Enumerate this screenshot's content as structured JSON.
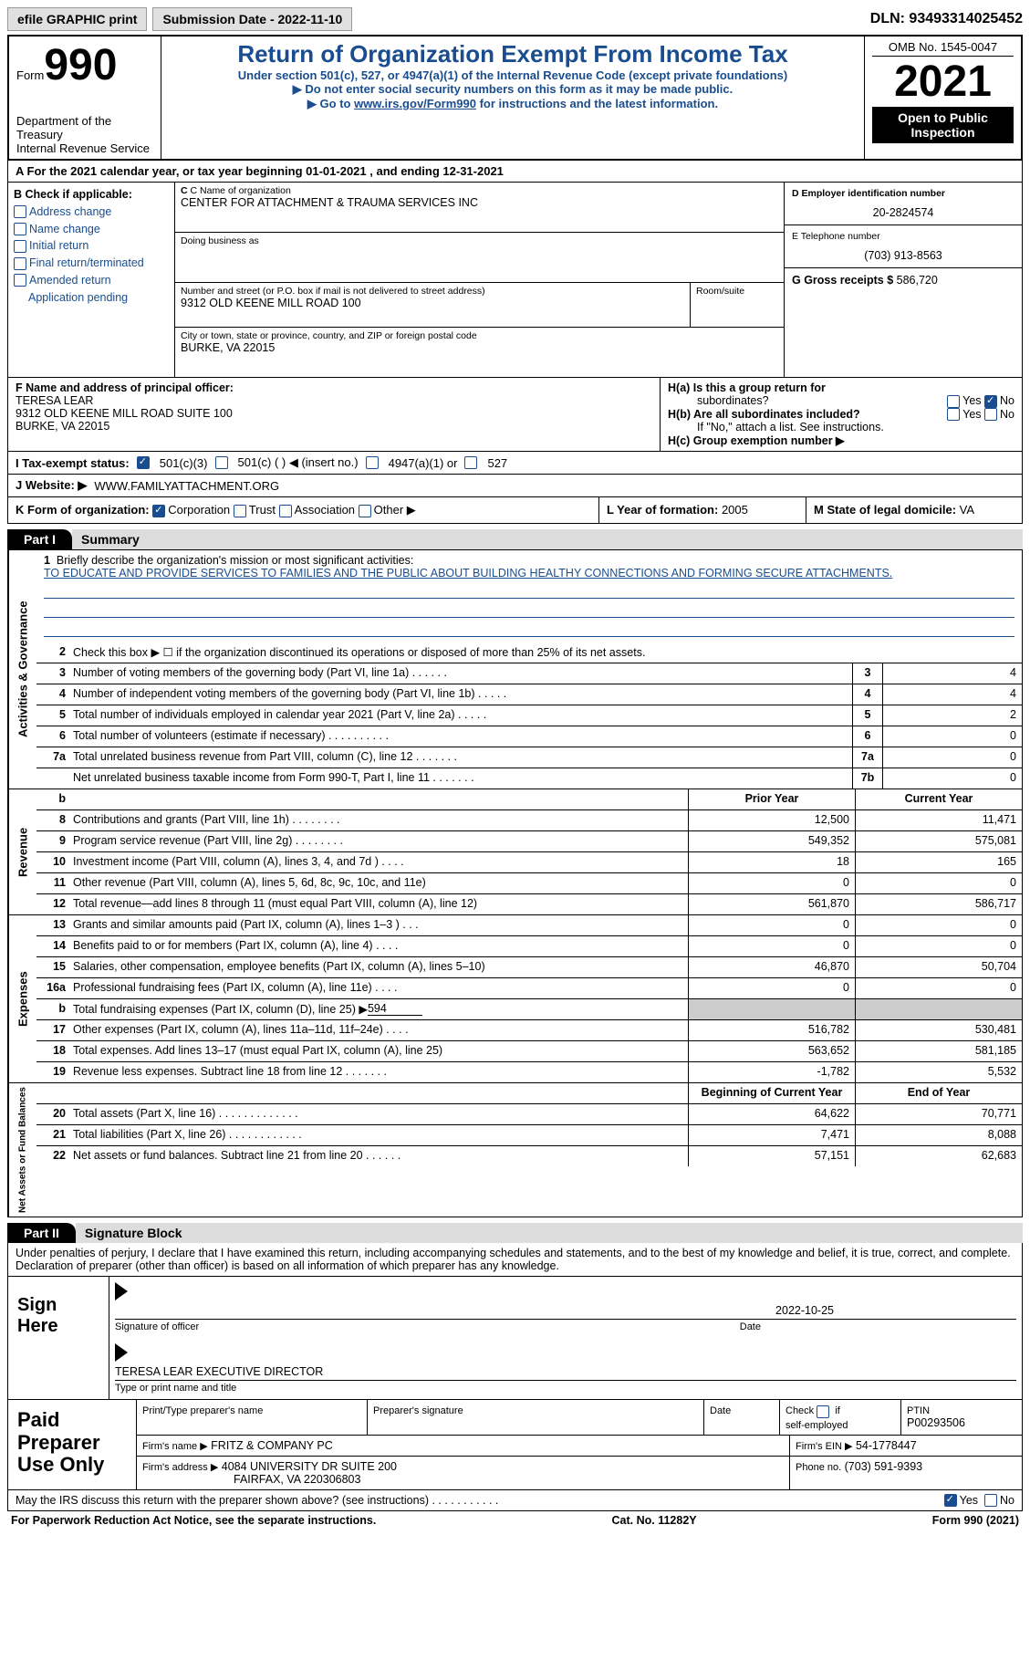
{
  "topbar": {
    "efile": "efile GRAPHIC print",
    "submission_label": "Submission Date - 2022-11-10",
    "dln": "DLN: 93493314025452"
  },
  "header": {
    "form_word": "Form",
    "form_num": "990",
    "dept": "Department of the Treasury",
    "irs": "Internal Revenue Service",
    "title": "Return of Organization Exempt From Income Tax",
    "subtitle1": "Under section 501(c), 527, or 4947(a)(1) of the Internal Revenue Code (except private foundations)",
    "subtitle2": "▶ Do not enter social security numbers on this form as it may be made public.",
    "subtitle3_pre": "▶ Go to ",
    "subtitle3_link": "www.irs.gov/Form990",
    "subtitle3_post": " for instructions and the latest information.",
    "omb": "OMB No. 1545-0047",
    "year": "2021",
    "open": "Open to Public Inspection"
  },
  "row_a": "A  For the 2021 calendar year, or tax year beginning 01-01-2021     , and ending 12-31-2021",
  "col_b": {
    "header": "B Check if applicable:",
    "items": [
      "Address change",
      "Name change",
      "Initial return",
      "Final return/terminated",
      "Amended return",
      "Application pending"
    ]
  },
  "col_c": {
    "c_label": "C Name of organization",
    "org": "CENTER FOR ATTACHMENT & TRAUMA SERVICES INC",
    "dba_label": "Doing business as",
    "addr_label": "Number and street (or P.O. box if mail is not delivered to street address)",
    "room_label": "Room/suite",
    "addr": "9312 OLD KEENE MILL ROAD 100",
    "city_label": "City or town, state or province, country, and ZIP or foreign postal code",
    "city": "BURKE, VA   22015"
  },
  "col_de": {
    "d_label": "D Employer identification number",
    "ein": "20-2824574",
    "e_label": "E Telephone number",
    "phone": "(703) 913-8563",
    "g_label": "G Gross receipts $",
    "gross": "586,720"
  },
  "f": {
    "label": "F Name and address of principal officer:",
    "name": "TERESA LEAR",
    "addr1": "9312 OLD KEENE MILL ROAD SUITE 100",
    "addr2": "BURKE, VA   22015"
  },
  "h": {
    "a1": "H(a)  Is this a group return for",
    "a2": "subordinates?",
    "b1": "H(b)  Are all subordinates included?",
    "b2": "If \"No,\" attach a list. See instructions.",
    "c": "H(c)  Group exemption number ▶",
    "yes": "Yes",
    "no": "No"
  },
  "i": {
    "label": "I   Tax-exempt status:",
    "o1": "501(c)(3)",
    "o2": "501(c) (   ) ◀ (insert no.)",
    "o3": "4947(a)(1) or",
    "o4": "527"
  },
  "j": {
    "label": "J   Website: ▶",
    "val": "WWW.FAMILYATTACHMENT.ORG"
  },
  "k": {
    "label": "K Form of organization:",
    "o1": "Corporation",
    "o2": "Trust",
    "o3": "Association",
    "o4": "Other ▶"
  },
  "l": {
    "label": "L Year of formation:",
    "val": "2005"
  },
  "m": {
    "label": "M State of legal domicile:",
    "val": "VA"
  },
  "part1": {
    "label": "Part I",
    "title": "Summary"
  },
  "summary": {
    "tab1": "Activities & Governance",
    "l1a": "Briefly describe the organization's mission or most significant activities:",
    "l1b": "TO EDUCATE AND PROVIDE SERVICES TO FAMILIES AND THE PUBLIC ABOUT BUILDING HEALTHY CONNECTIONS AND FORMING SECURE ATTACHMENTS.",
    "l2": "Check this box ▶ ☐ if the organization discontinued its operations or disposed of more than 25% of its net assets.",
    "rows_gov": [
      {
        "n": "3",
        "t": "Number of voting members of the governing body (Part VI, line 1a)   .    .    .    .    .    .",
        "box": "3",
        "v": "4"
      },
      {
        "n": "4",
        "t": "Number of independent voting members of the governing body (Part VI, line 1b)   .    .    .    .    .",
        "box": "4",
        "v": "4"
      },
      {
        "n": "5",
        "t": "Total number of individuals employed in calendar year 2021 (Part V, line 2a)   .    .    .    .    .",
        "box": "5",
        "v": "2"
      },
      {
        "n": "6",
        "t": "Total number of volunteers (estimate if necessary)   .    .    .    .    .    .    .    .    .    .",
        "box": "6",
        "v": "0"
      },
      {
        "n": "7a",
        "t": "Total unrelated business revenue from Part VIII, column (C), line 12   .    .    .    .    .    .    .",
        "box": "7a",
        "v": "0"
      },
      {
        "n": "",
        "t": "Net unrelated business taxable income from Form 990-T, Part I, line 11   .    .    .    .    .    .    .",
        "box": "7b",
        "v": "0"
      }
    ],
    "col_py": "Prior Year",
    "col_cy": "Current Year",
    "tab2": "Revenue",
    "rows_rev": [
      {
        "n": "8",
        "t": "Contributions and grants (Part VIII, line 1h)   .    .    .    .    .    .    .    .",
        "py": "12,500",
        "cy": "11,471"
      },
      {
        "n": "9",
        "t": "Program service revenue (Part VIII, line 2g)   .    .    .    .    .    .    .    .",
        "py": "549,352",
        "cy": "575,081"
      },
      {
        "n": "10",
        "t": "Investment income (Part VIII, column (A), lines 3, 4, and 7d )   .    .    .    .",
        "py": "18",
        "cy": "165"
      },
      {
        "n": "11",
        "t": "Other revenue (Part VIII, column (A), lines 5, 6d, 8c, 9c, 10c, and 11e)",
        "py": "0",
        "cy": "0"
      },
      {
        "n": "12",
        "t": "Total revenue—add lines 8 through 11 (must equal Part VIII, column (A), line 12)",
        "py": "561,870",
        "cy": "586,717"
      }
    ],
    "tab3": "Expenses",
    "rows_exp": [
      {
        "n": "13",
        "t": "Grants and similar amounts paid (Part IX, column (A), lines 1–3 )   .    .    .",
        "py": "0",
        "cy": "0"
      },
      {
        "n": "14",
        "t": "Benefits paid to or for members (Part IX, column (A), line 4)   .    .    .    .",
        "py": "0",
        "cy": "0"
      },
      {
        "n": "15",
        "t": "Salaries, other compensation, employee benefits (Part IX, column (A), lines 5–10)",
        "py": "46,870",
        "cy": "50,704"
      },
      {
        "n": "16a",
        "t": "Professional fundraising fees (Part IX, column (A), line 11e)   .    .    .    .",
        "py": "0",
        "cy": "0"
      },
      {
        "n": "b",
        "t": "Total fundraising expenses (Part IX, column (D), line 25) ▶594",
        "py": "grey",
        "cy": "grey"
      },
      {
        "n": "17",
        "t": "Other expenses (Part IX, column (A), lines 11a–11d, 11f–24e)   .    .    .    .",
        "py": "516,782",
        "cy": "530,481"
      },
      {
        "n": "18",
        "t": "Total expenses. Add lines 13–17 (must equal Part IX, column (A), line 25)",
        "py": "563,652",
        "cy": "581,185"
      },
      {
        "n": "19",
        "t": "Revenue less expenses. Subtract line 18 from line 12   .    .    .    .    .    .    .",
        "py": "-1,782",
        "cy": "5,532"
      }
    ],
    "col_boy": "Beginning of Current Year",
    "col_eoy": "End of Year",
    "tab4": "Net Assets or Fund Balances",
    "rows_na": [
      {
        "n": "20",
        "t": "Total assets (Part X, line 16)   .    .    .    .    .    .    .    .    .    .    .    .    .",
        "py": "64,622",
        "cy": "70,771"
      },
      {
        "n": "21",
        "t": "Total liabilities (Part X, line 26)   .    .    .    .    .    .    .    .    .    .    .    .",
        "py": "7,471",
        "cy": "8,088"
      },
      {
        "n": "22",
        "t": "Net assets or fund balances. Subtract line 21 from line 20   .    .    .    .    .    .",
        "py": "57,151",
        "cy": "62,683"
      }
    ]
  },
  "part2": {
    "label": "Part II",
    "title": "Signature Block"
  },
  "penalties": "Under penalties of perjury, I declare that I have examined this return, including accompanying schedules and statements, and to the best of my knowledge and belief, it is true, correct, and complete. Declaration of preparer (other than officer) is based on all information of which preparer has any knowledge.",
  "sign": {
    "here": "Sign Here",
    "sig_label": "Signature of officer",
    "date": "2022-10-25",
    "date_label": "Date",
    "name": "TERESA LEAR  EXECUTIVE DIRECTOR",
    "name_label": "Type or print name and title"
  },
  "prep": {
    "title": "Paid Preparer Use Only",
    "h1": "Print/Type preparer's name",
    "h2": "Preparer's signature",
    "h3": "Date",
    "h4_a": "Check",
    "h4_b": "if",
    "h4_c": "self-employed",
    "h5": "PTIN",
    "ptin": "P00293506",
    "firm_label": "Firm's name    ▶",
    "firm": "FRITZ & COMPANY PC",
    "ein_label": "Firm's EIN ▶",
    "ein": "54-1778447",
    "addr_label": "Firm's address ▶",
    "addr1": "4084 UNIVERSITY DR SUITE 200",
    "addr2": "FAIRFAX, VA   220306803",
    "phone_label": "Phone no.",
    "phone": "(703) 591-9393"
  },
  "discuss": "May the IRS discuss this return with the preparer shown above? (see instructions)   .    .    .    .    .    .    .    .    .    .    .",
  "footer": {
    "pra": "For Paperwork Reduction Act Notice, see the separate instructions.",
    "cat": "Cat. No. 11282Y",
    "form": "Form 990 (2021)"
  }
}
